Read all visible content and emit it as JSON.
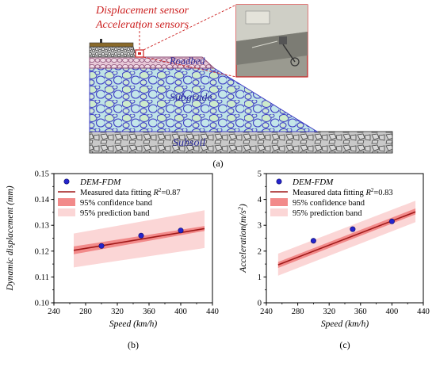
{
  "figure_a": {
    "label": "(a)",
    "sensor_labels": [
      "Displacement sensor",
      "Acceleration sensors"
    ],
    "layer_labels": [
      "Roadbed",
      "Subgrade",
      "Subsoil"
    ],
    "colors": {
      "sensor_text": "#cc2222",
      "layer_text": "#2a2a9a",
      "roadbed_fill": "#e8c9d8",
      "subgrade_fill": "#bfe3e6",
      "subgrade_stroke": "#3f3fc4",
      "subsoil_fill": "#cfcfcf"
    }
  },
  "chart_data": [
    {
      "type": "scatter",
      "panel": "(b)",
      "xlabel": "Speed (km/h)",
      "ylabel": "Dynamic displacement (mm)",
      "xlim": [
        240,
        440
      ],
      "ylim": [
        0.1,
        0.15
      ],
      "xticks": [
        240,
        280,
        320,
        360,
        400,
        440
      ],
      "yticks": [
        0.1,
        0.11,
        0.12,
        0.13,
        0.14,
        0.15
      ],
      "ytick_labels": [
        "0.10",
        "0.11",
        "0.12",
        "0.13",
        "0.14",
        "0.15"
      ],
      "legend": [
        {
          "label": "DEM-FDM",
          "kind": "marker"
        },
        {
          "label": "Measured data fitting",
          "r2": "=0.87",
          "kind": "line"
        },
        {
          "label": "95% confidence band",
          "kind": "band"
        },
        {
          "label": "95% prediction band",
          "kind": "band"
        }
      ],
      "series": [
        {
          "name": "DEM-FDM",
          "x": [
            300,
            350,
            400
          ],
          "y": [
            0.122,
            0.126,
            0.128
          ]
        }
      ],
      "fit": {
        "x": [
          265,
          430
        ],
        "y": [
          0.1203,
          0.1287
        ]
      },
      "confidence_band": {
        "x": [
          265,
          430
        ],
        "lower": [
          0.1188,
          0.1278
        ],
        "upper": [
          0.1218,
          0.1297
        ]
      },
      "prediction_band": {
        "x": [
          265,
          430
        ],
        "lower": [
          0.1137,
          0.1212
        ],
        "upper": [
          0.1268,
          0.1358
        ]
      },
      "colors": {
        "marker": "#2424cc",
        "fit": "#a01818",
        "confidence": "#f28a8a",
        "prediction": "#fbd6d6"
      }
    },
    {
      "type": "scatter",
      "panel": "(c)",
      "xlabel": "Speed (km/h)",
      "ylabel": "Acceleration(m/s",
      "ylabel_sup": "2",
      "ylabel_end": ")",
      "xlim": [
        240,
        440
      ],
      "ylim": [
        0,
        5
      ],
      "xticks": [
        240,
        280,
        320,
        360,
        400,
        440
      ],
      "yticks": [
        0,
        1,
        2,
        3,
        4,
        5
      ],
      "ytick_labels": [
        "0",
        "1",
        "2",
        "3",
        "4",
        "5"
      ],
      "legend": [
        {
          "label": "DEM-FDM",
          "kind": "marker"
        },
        {
          "label": "Measured data fitting",
          "r2": "=0.83",
          "kind": "line"
        },
        {
          "label": "95% confidence band",
          "kind": "band"
        },
        {
          "label": "95% prediction band",
          "kind": "band"
        }
      ],
      "series": [
        {
          "name": "DEM-FDM",
          "x": [
            300,
            350,
            400
          ],
          "y": [
            2.4,
            2.85,
            3.15
          ]
        }
      ],
      "fit": {
        "x": [
          255,
          430
        ],
        "y": [
          1.47,
          3.52
        ]
      },
      "confidence_band": {
        "x": [
          255,
          430
        ],
        "lower": [
          1.35,
          3.42
        ],
        "upper": [
          1.58,
          3.65
        ]
      },
      "prediction_band": {
        "x": [
          255,
          430
        ],
        "lower": [
          1.05,
          3.12
        ],
        "upper": [
          1.9,
          3.95
        ]
      },
      "colors": {
        "marker": "#2424cc",
        "fit": "#a01818",
        "confidence": "#f28a8a",
        "prediction": "#fbd6d6"
      }
    }
  ]
}
